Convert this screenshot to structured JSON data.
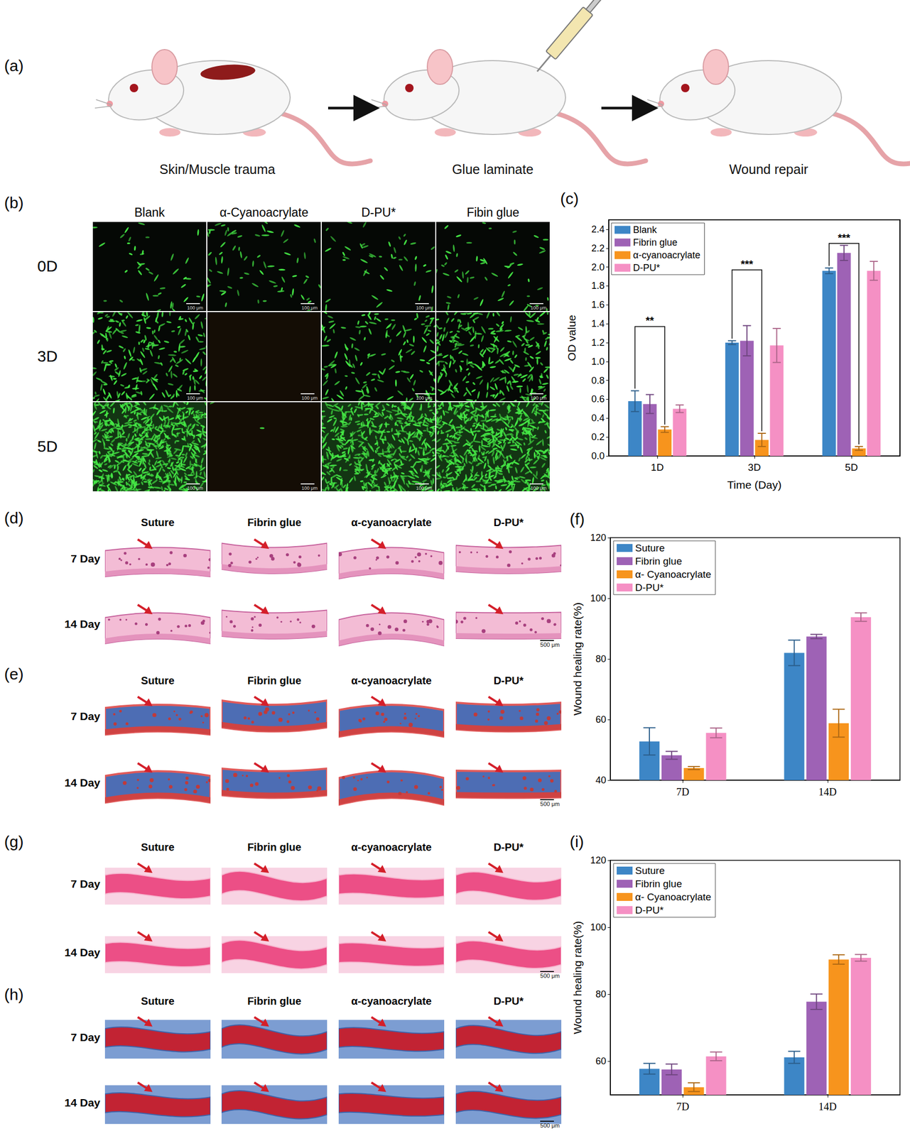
{
  "schematic": {
    "panel": "(a)",
    "steps": [
      "Skin/Muscle trauma",
      "Glue laminate",
      "Wound repair"
    ]
  },
  "fluorescence": {
    "panel": "(b)",
    "columns": [
      "Blank",
      "α-Cyanoacrylate",
      "D-PU*",
      "Fibin glue"
    ],
    "rows": [
      "0D",
      "3D",
      "5D"
    ],
    "scale_bar": "100 μm"
  },
  "histology": [
    {
      "panel": "(d)",
      "columns": [
        "Suture",
        "Fibrin glue",
        "α-cyanoacrylate",
        "D-PU*"
      ],
      "rows": [
        "7 Day",
        "14 Day"
      ],
      "scale_bar": "500 μm"
    },
    {
      "panel": "(e)",
      "columns": [
        "Suture",
        "Fibrin glue",
        "α-cyanoacrylate",
        "D-PU*"
      ],
      "rows": [
        "7 Day",
        "14 Day"
      ],
      "scale_bar": "500 μm"
    },
    {
      "panel": "(g)",
      "columns": [
        "Suture",
        "Fibrin glue",
        "α-cyanoacrylate",
        "D-PU*"
      ],
      "rows": [
        "7 Day",
        "14 Day"
      ],
      "scale_bar": "500 μm"
    },
    {
      "panel": "(h)",
      "columns": [
        "Suture",
        "Fibrin glue",
        "α-cyanoacrylate",
        "D-PU*"
      ],
      "rows": [
        "7 Day",
        "14 Day"
      ],
      "scale_bar": "500 μm"
    }
  ],
  "chart_data": [
    {
      "panel": "(c)",
      "type": "bar",
      "categories": [
        "1D",
        "3D",
        "5D"
      ],
      "xlabel": "Time (Day)",
      "ylabel": "OD value",
      "ylim": [
        0,
        2.5
      ],
      "yticks": [
        {
          "value": 0,
          "label": "0.0"
        },
        0.2,
        0.4,
        0.6,
        0.8,
        {
          "value": 1,
          "label": "1.0"
        },
        1.2,
        1.4,
        1.6,
        1.8,
        {
          "value": 2,
          "label": "2.0"
        },
        2.2,
        2.4
      ],
      "legend": "top-left",
      "grid": false,
      "series": [
        {
          "name": "Blank",
          "color": "#3d86c6",
          "values": [
            0.58,
            1.2,
            1.96
          ],
          "errors": [
            0.11,
            0.02,
            0.03
          ]
        },
        {
          "name": "Fibrin glue",
          "color": "#9e62b5",
          "values": [
            0.55,
            1.22,
            2.15
          ],
          "errors": [
            0.1,
            0.16,
            0.08
          ]
        },
        {
          "name": "α-cyanoacrylate",
          "color": "#f7941d",
          "values": [
            0.28,
            0.17,
            0.08
          ],
          "errors": [
            0.03,
            0.07,
            0.02
          ]
        },
        {
          "name": "D-PU*",
          "color": "#f590c4",
          "values": [
            0.5,
            1.17,
            1.96
          ],
          "errors": [
            0.04,
            0.18,
            0.1
          ]
        }
      ],
      "annotations": [
        {
          "category": "1D",
          "from": "Blank",
          "to": "α-cyanoacrylate",
          "y": 1.37,
          "text": "**"
        },
        {
          "category": "3D",
          "from": "Blank",
          "to": "α-cyanoacrylate",
          "y": 1.97,
          "text": "***"
        },
        {
          "category": "5D",
          "from": "Blank",
          "to": "α-cyanoacrylate",
          "y": 2.25,
          "text": "***"
        }
      ]
    },
    {
      "panel": "(f)",
      "type": "bar",
      "categories": [
        "7D",
        "14D"
      ],
      "ylabel": "Wound healing rate(%)",
      "ylim": [
        40,
        120
      ],
      "yticks": [
        40,
        60,
        80,
        100,
        120
      ],
      "legend": "top-left",
      "grid": false,
      "series": [
        {
          "name": "Suture",
          "color": "#3d86c6",
          "values": [
            52.8,
            82.0
          ],
          "errors": [
            4.5,
            4.2
          ]
        },
        {
          "name": "Fibrin glue",
          "color": "#9e62b5",
          "values": [
            48.2,
            87.4
          ],
          "errors": [
            1.3,
            0.7
          ]
        },
        {
          "name": "α- Cyanoacrylate",
          "color": "#f7941d",
          "values": [
            44.0,
            58.8
          ],
          "errors": [
            0.5,
            4.6
          ]
        },
        {
          "name": "D-PU*",
          "color": "#f590c4",
          "values": [
            55.6,
            93.8
          ],
          "errors": [
            1.6,
            1.4
          ]
        }
      ]
    },
    {
      "panel": "(i)",
      "type": "bar",
      "categories": [
        "7D",
        "14D"
      ],
      "ylabel": "Wound healing rate(%)",
      "ylim": [
        50,
        120
      ],
      "yticks": [
        60,
        80,
        100,
        120
      ],
      "legend": "top-left",
      "grid": false,
      "series": [
        {
          "name": "Suture",
          "color": "#3d86c6",
          "values": [
            57.8,
            61.2
          ],
          "errors": [
            1.6,
            1.8
          ]
        },
        {
          "name": "Fibrin glue",
          "color": "#9e62b5",
          "values": [
            57.6,
            77.8
          ],
          "errors": [
            1.6,
            2.3
          ]
        },
        {
          "name": "α- Cyanoacrylate",
          "color": "#f7941d",
          "values": [
            52.3,
            90.4
          ],
          "errors": [
            1.3,
            1.4
          ]
        },
        {
          "name": "D-PU*",
          "color": "#f590c4",
          "values": [
            61.5,
            90.9
          ],
          "errors": [
            1.3,
            1.0
          ]
        }
      ]
    }
  ]
}
